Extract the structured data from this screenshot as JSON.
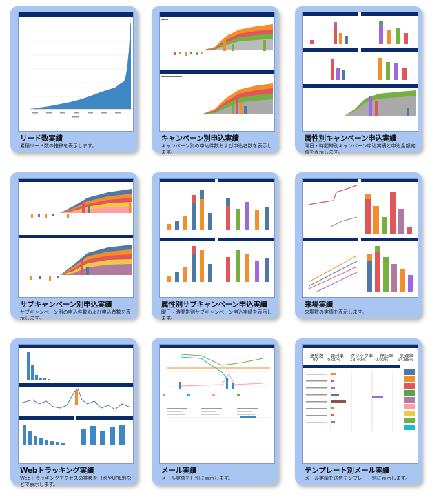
{
  "colors": {
    "card_bg": "#a9c6f3",
    "header_navy": "#0a2a6b",
    "area_blue": "#3f86c4",
    "palette": [
      "#f28e2b",
      "#e15759",
      "#76b041",
      "#4e79a7",
      "#9c6ade",
      "#59a14f",
      "#edc948",
      "#b07aa1",
      "#ff9da7",
      "#17becf"
    ]
  },
  "cards": [
    {
      "title": "リード数実績",
      "description": "累積リード数の推移を表示します。",
      "thumbnail": "cumulative-area-chart"
    },
    {
      "title": "キャンペーン別申込実績",
      "description": "キャンペーン別の申込件数および申込者数を表示します。",
      "thumbnail": "stacked-area-with-bars"
    },
    {
      "title": "属性別キャンペーン申込実績",
      "description": "曜日・時間帯別キャンペーン申込実績と申込金額実績を表示します。",
      "thumbnail": "stacked-bar-grid"
    },
    {
      "title": "サブキャンペーン別申込実績",
      "description": "サブキャンペーン別の申込件数および申込者数を表示します。",
      "thumbnail": "stacked-area-with-bars"
    },
    {
      "title": "属性別サブキャンペーン申込実績",
      "description": "曜日・時間帯別サブキャンペーン申込実績を表示します。",
      "thumbnail": "stacked-bar-grid"
    },
    {
      "title": "来場実績",
      "description": "来場数の実績を表示します。",
      "thumbnail": "line-and-bar-grid"
    },
    {
      "title": "Webトラッキング実績",
      "description": "Webトラッキングアクセスの推移を日別やURL別などで表示します。",
      "thumbnail": "web-tracking-charts"
    },
    {
      "title": "メール実績",
      "description": "メール実績を日別に表示します。",
      "thumbnail": "mail-line-chart"
    },
    {
      "title": "テンプレート別メール実績",
      "description": "メール実績を送信テンプレート別に表示します。",
      "thumbnail": "template-mail-table"
    }
  ],
  "template_card": {
    "stats_headers": [
      "送信数",
      "開封率",
      "クリック率",
      "停止率",
      "到達率"
    ],
    "stats_values": [
      "97",
      "0.00%",
      "13.40%",
      "0.00%",
      "94.85%"
    ]
  }
}
